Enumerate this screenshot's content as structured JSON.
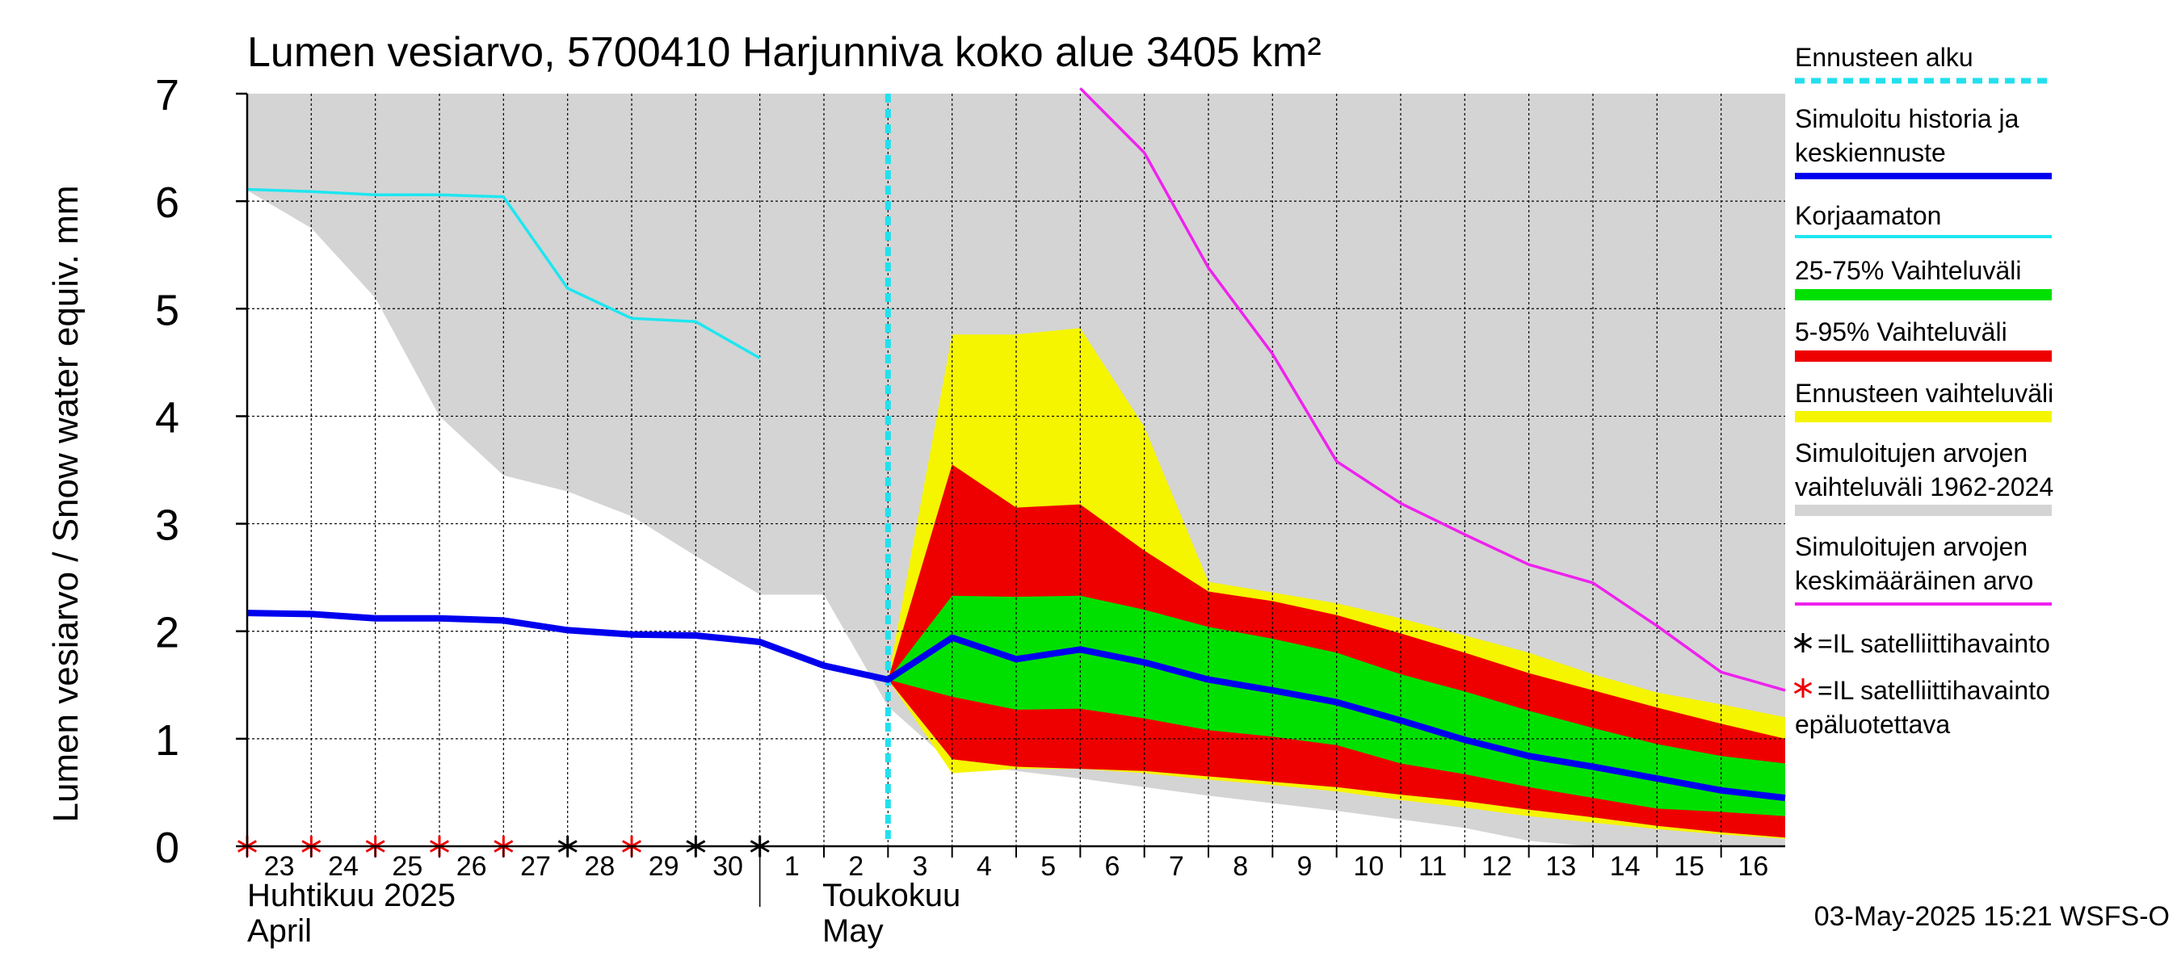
{
  "chart_data": {
    "type": "line",
    "title": "Lumen vesiarvo, 5700410 Harjunniva koko alue 3405 km²",
    "ylabel": "Lumen vesiarvo / Snow water equiv.    mm",
    "ylim": [
      0,
      7
    ],
    "yticks": [
      "0",
      "1",
      "2",
      "3",
      "4",
      "5",
      "6",
      "7"
    ],
    "xlim": [
      "2025-04-23",
      "2025-05-17"
    ],
    "day_ticks": [
      "23",
      "24",
      "25",
      "26",
      "27",
      "28",
      "29",
      "30",
      "1",
      "2",
      "3",
      "4",
      "5",
      "6",
      "7",
      "8",
      "9",
      "10",
      "11",
      "12",
      "13",
      "14",
      "15",
      "16"
    ],
    "month_labels": {
      "april_fi": "Huhtikuu  2025",
      "april_en": "April",
      "may_fi": "Toukokuu",
      "may_en": "May"
    },
    "forecast_start": "2025-05-03",
    "grid": true,
    "legend_position": "right",
    "legend": [
      {
        "label": "Ennusteen alku",
        "color": "#22e0ee"
      },
      {
        "label": "Simuloitu historia ja keskiennuste",
        "color": "#0000ee"
      },
      {
        "label": "Korjaamaton",
        "color": "#1ee6f0"
      },
      {
        "label": "25-75% Vaihteluväli",
        "color": "#00e000"
      },
      {
        "label": "5-95% Vaihteluväli",
        "color": "#ee0000"
      },
      {
        "label": "Ennusteen vaihteluväli",
        "color": "#f5f500"
      },
      {
        "label": "Simuloitujen arvojen vaihteluväli 1962-2024",
        "color": "#d4d4d4"
      },
      {
        "label": "Simuloitujen arvojen keskimääräinen arvo",
        "color": "#ee22ee"
      },
      {
        "label": "=IL satelliittihavainto",
        "color": "#000000"
      },
      {
        "label": "=IL satelliittihavainto epäluotettava",
        "color": "#ee0000"
      }
    ],
    "series": [
      {
        "name": "Simuloitu historia ja keskiennuste",
        "color": "#0000ee",
        "x": [
          "2025-04-23",
          "2025-04-24",
          "2025-04-25",
          "2025-04-26",
          "2025-04-27",
          "2025-04-28",
          "2025-04-29",
          "2025-04-30",
          "2025-05-01",
          "2025-05-02",
          "2025-05-03",
          "2025-05-04",
          "2025-05-05",
          "2025-05-06",
          "2025-05-07",
          "2025-05-08",
          "2025-05-09",
          "2025-05-10",
          "2025-05-11",
          "2025-05-12",
          "2025-05-13",
          "2025-05-14",
          "2025-05-15",
          "2025-05-16",
          "2025-05-17"
        ],
        "y": [
          2.17,
          2.16,
          2.12,
          2.12,
          2.1,
          2.01,
          1.97,
          1.96,
          1.9,
          1.68,
          1.55,
          1.94,
          1.74,
          1.83,
          1.71,
          1.55,
          1.45,
          1.34,
          1.17,
          0.99,
          0.84,
          0.74,
          0.63,
          0.52,
          0.45
        ]
      },
      {
        "name": "Korjaamaton",
        "color": "#1ee6f0",
        "x": [
          "2025-04-23",
          "2025-04-24",
          "2025-04-25",
          "2025-04-26",
          "2025-04-27",
          "2025-04-28",
          "2025-04-29",
          "2025-04-30",
          "2025-05-01"
        ],
        "y": [
          6.11,
          6.09,
          6.06,
          6.06,
          6.04,
          5.19,
          4.91,
          4.88,
          4.54
        ]
      },
      {
        "name": "Simuloitujen arvojen keskimääräinen arvo",
        "color": "#ee22ee",
        "x": [
          "2025-05-06",
          "2025-05-07",
          "2025-05-08",
          "2025-05-09",
          "2025-05-10",
          "2025-05-11",
          "2025-05-12",
          "2025-05-13",
          "2025-05-14",
          "2025-05-15",
          "2025-05-16",
          "2025-05-17"
        ],
        "y": [
          7.05,
          6.45,
          5.38,
          4.58,
          3.58,
          3.19,
          2.9,
          2.62,
          2.45,
          2.05,
          1.62,
          1.45
        ]
      }
    ],
    "bands": [
      {
        "name": "Simuloitujen arvojen vaihteluväli 1962-2024",
        "color": "#d4d4d4",
        "x": [
          "2025-04-23",
          "2025-04-24",
          "2025-04-25",
          "2025-04-26",
          "2025-04-27",
          "2025-04-28",
          "2025-04-29",
          "2025-04-30",
          "2025-05-01",
          "2025-05-02",
          "2025-05-03",
          "2025-05-04",
          "2025-05-05",
          "2025-05-06",
          "2025-05-07",
          "2025-05-08",
          "2025-05-09",
          "2025-05-10",
          "2025-05-11",
          "2025-05-12",
          "2025-05-13",
          "2025-05-14",
          "2025-05-15",
          "2025-05-16",
          "2025-05-17"
        ],
        "low": [
          6.1,
          5.75,
          5.1,
          4.0,
          3.45,
          3.3,
          3.07,
          2.7,
          2.34,
          2.34,
          1.3,
          0.77,
          0.7,
          0.63,
          0.55,
          0.47,
          0.4,
          0.33,
          0.25,
          0.17,
          0.05,
          0.0,
          0.0,
          0.0,
          0.0
        ],
        "high": [
          7,
          7,
          7,
          7,
          7,
          7,
          7,
          7,
          7,
          7,
          7,
          7,
          7,
          7,
          7,
          7,
          7,
          7,
          7,
          7,
          7,
          7,
          7,
          7,
          7
        ]
      },
      {
        "name": "Ennusteen vaihteluväli",
        "color": "#f5f500",
        "x": [
          "2025-05-03",
          "2025-05-04",
          "2025-05-05",
          "2025-05-06",
          "2025-05-07",
          "2025-05-08",
          "2025-05-09",
          "2025-05-10",
          "2025-05-11",
          "2025-05-12",
          "2025-05-13",
          "2025-05-14",
          "2025-05-15",
          "2025-05-16",
          "2025-05-17"
        ],
        "low": [
          1.55,
          0.68,
          0.72,
          0.72,
          0.68,
          0.62,
          0.57,
          0.51,
          0.43,
          0.36,
          0.28,
          0.22,
          0.16,
          0.11,
          0.07
        ],
        "high": [
          1.55,
          4.76,
          4.76,
          4.82,
          3.9,
          2.46,
          2.36,
          2.26,
          2.12,
          1.96,
          1.8,
          1.6,
          1.43,
          1.32,
          1.2
        ]
      },
      {
        "name": "5-95% Vaihteluväli",
        "color": "#ee0000",
        "x": [
          "2025-05-03",
          "2025-05-04",
          "2025-05-05",
          "2025-05-06",
          "2025-05-07",
          "2025-05-08",
          "2025-05-09",
          "2025-05-10",
          "2025-05-11",
          "2025-05-12",
          "2025-05-13",
          "2025-05-14",
          "2025-05-15",
          "2025-05-16",
          "2025-05-17"
        ],
        "low": [
          1.55,
          0.81,
          0.74,
          0.72,
          0.7,
          0.65,
          0.6,
          0.55,
          0.48,
          0.42,
          0.34,
          0.27,
          0.19,
          0.13,
          0.08
        ],
        "high": [
          1.55,
          3.55,
          3.15,
          3.18,
          2.75,
          2.37,
          2.28,
          2.15,
          1.98,
          1.8,
          1.61,
          1.45,
          1.29,
          1.14,
          1.0
        ]
      },
      {
        "name": "25-75% Vaihteluväli",
        "color": "#00e000",
        "x": [
          "2025-05-03",
          "2025-05-04",
          "2025-05-05",
          "2025-05-06",
          "2025-05-07",
          "2025-05-08",
          "2025-05-09",
          "2025-05-10",
          "2025-05-11",
          "2025-05-12",
          "2025-05-13",
          "2025-05-14",
          "2025-05-15",
          "2025-05-16",
          "2025-05-17"
        ],
        "low": [
          1.55,
          1.39,
          1.27,
          1.28,
          1.19,
          1.08,
          1.02,
          0.94,
          0.77,
          0.67,
          0.55,
          0.45,
          0.35,
          0.32,
          0.28
        ],
        "high": [
          1.55,
          2.33,
          2.32,
          2.33,
          2.2,
          2.04,
          1.93,
          1.8,
          1.6,
          1.44,
          1.26,
          1.1,
          0.95,
          0.84,
          0.77
        ]
      }
    ],
    "observations": [
      {
        "date": "2025-04-23",
        "value": 0,
        "reliable": false
      },
      {
        "date": "2025-04-24",
        "value": 0,
        "reliable": false
      },
      {
        "date": "2025-04-25",
        "value": 0,
        "reliable": false
      },
      {
        "date": "2025-04-26",
        "value": 0,
        "reliable": false
      },
      {
        "date": "2025-04-27",
        "value": 0,
        "reliable": false
      },
      {
        "date": "2025-04-28",
        "value": 0,
        "reliable": true
      },
      {
        "date": "2025-04-29",
        "value": 0,
        "reliable": false
      },
      {
        "date": "2025-04-30",
        "value": 0,
        "reliable": true
      },
      {
        "date": "2025-05-01",
        "value": 0,
        "reliable": true
      }
    ],
    "timestamp": "03-May-2025 15:21 WSFS-O"
  }
}
